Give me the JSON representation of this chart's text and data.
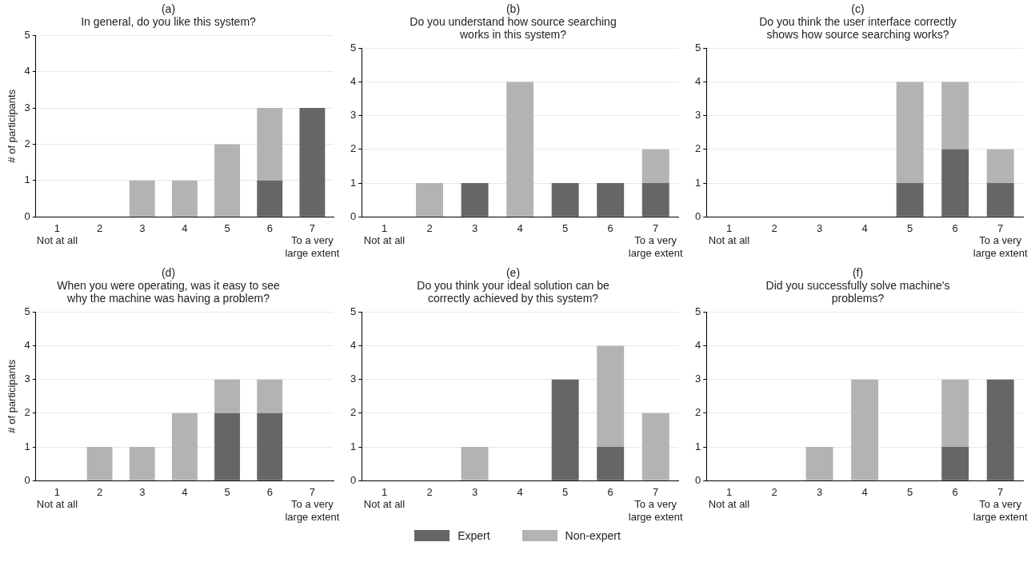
{
  "chart_data": [
    {
      "type": "bar",
      "stacked": true,
      "title": "(a)",
      "subtitle": "In general, do you like this system?",
      "ylabel": "# of participants",
      "categories": [
        "1\nNot at all",
        "2",
        "3",
        "4",
        "5",
        "6",
        "7\nTo a very\nlarge extent"
      ],
      "ylim": [
        0,
        5
      ],
      "yticks": [
        0,
        1,
        2,
        3,
        4,
        5
      ],
      "grid": "y",
      "legend": "bottom",
      "series": [
        {
          "name": "Expert",
          "color": "#666666",
          "values": [
            0,
            0,
            0,
            0,
            0,
            1,
            3
          ]
        },
        {
          "name": "Non-expert",
          "color": "#b3b3b3",
          "values": [
            0,
            0,
            1,
            1,
            2,
            2,
            0
          ]
        }
      ]
    },
    {
      "type": "bar",
      "stacked": true,
      "title": "(b)",
      "subtitle": "Do you understand how source searching works in this system?",
      "categories": [
        "1\nNot at all",
        "2",
        "3",
        "4",
        "5",
        "6",
        "7\nTo a very\nlarge extent"
      ],
      "ylim": [
        0,
        5
      ],
      "yticks": [
        0,
        1,
        2,
        3,
        4,
        5
      ],
      "grid": "y",
      "series": [
        {
          "color": "#666666",
          "values": [
            0,
            0,
            1,
            0,
            1,
            1,
            1
          ]
        },
        {
          "color": "#b3b3b3",
          "values": [
            0,
            1,
            0,
            4,
            0,
            0,
            1
          ]
        }
      ]
    },
    {
      "type": "bar",
      "stacked": true,
      "title": "(c)",
      "subtitle": "Do you think the user interface correctly shows how source searching works?",
      "categories": [
        "1\nNot at all",
        "2",
        "3",
        "4",
        "5",
        "6",
        "7\nTo a very\nlarge extent"
      ],
      "ylim": [
        0,
        5
      ],
      "yticks": [
        0,
        1,
        2,
        3,
        4,
        5
      ],
      "grid": "y",
      "series": [
        {
          "color": "#666666",
          "values": [
            0,
            0,
            0,
            0,
            1,
            2,
            1
          ]
        },
        {
          "color": "#b3b3b3",
          "values": [
            0,
            0,
            0,
            0,
            3,
            2,
            1
          ]
        }
      ]
    },
    {
      "type": "bar",
      "stacked": true,
      "title": "(d)",
      "subtitle": "When you were operating, was it easy to see why the machine was having a problem?",
      "ylabel": "# of participants",
      "categories": [
        "1\nNot at all",
        "2",
        "3",
        "4",
        "5",
        "6",
        "7\nTo a very\nlarge extent"
      ],
      "ylim": [
        0,
        5
      ],
      "yticks": [
        0,
        1,
        2,
        3,
        4,
        5
      ],
      "grid": "y",
      "series": [
        {
          "color": "#666666",
          "values": [
            0,
            0,
            0,
            0,
            2,
            2,
            0
          ]
        },
        {
          "color": "#b3b3b3",
          "values": [
            0,
            1,
            1,
            2,
            1,
            1,
            0
          ]
        }
      ]
    },
    {
      "type": "bar",
      "stacked": true,
      "title": "(e)",
      "subtitle": "Do you think your ideal solution can be correctly achieved by this system?",
      "categories": [
        "1\nNot at all",
        "2",
        "3",
        "4",
        "5",
        "6",
        "7\nTo a very\nlarge extent"
      ],
      "ylim": [
        0,
        5
      ],
      "yticks": [
        0,
        1,
        2,
        3,
        4,
        5
      ],
      "grid": "y",
      "series": [
        {
          "color": "#666666",
          "values": [
            0,
            0,
            0,
            0,
            3,
            1,
            0
          ]
        },
        {
          "color": "#b3b3b3",
          "values": [
            0,
            0,
            1,
            0,
            0,
            3,
            2
          ]
        }
      ]
    },
    {
      "type": "bar",
      "stacked": true,
      "title": "(f)",
      "subtitle": "Did you successfully solve machine's problems?",
      "categories": [
        "1\nNot at all",
        "2",
        "3",
        "4",
        "5",
        "6",
        "7\nTo a very\nlarge extent"
      ],
      "ylim": [
        0,
        5
      ],
      "yticks": [
        0,
        1,
        2,
        3,
        4,
        5
      ],
      "grid": "y",
      "series": [
        {
          "color": "#666666",
          "values": [
            0,
            0,
            0,
            0,
            0,
            1,
            3
          ]
        },
        {
          "color": "#b3b3b3",
          "values": [
            0,
            0,
            1,
            3,
            0,
            2,
            0
          ]
        }
      ]
    }
  ]
}
